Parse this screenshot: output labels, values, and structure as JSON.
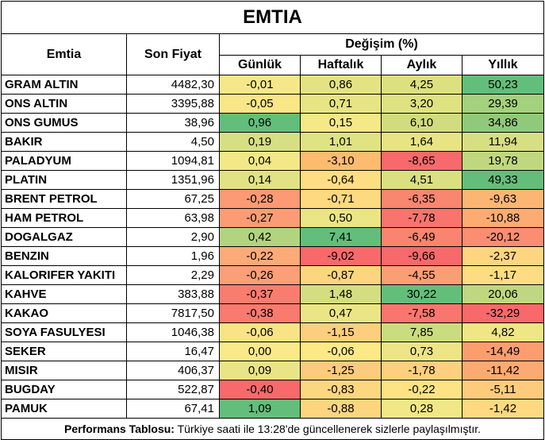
{
  "title": "EMTIA",
  "headers": {
    "emtia": "Emtia",
    "son_fiyat": "Son Fiyat",
    "degisim": "Değişim (%)",
    "gunluk": "Günlük",
    "haftalik": "Haftalık",
    "aylik": "Aylık",
    "yillik": "Yıllık"
  },
  "rows": [
    {
      "name": "GRAM ALTIN",
      "price": "4482,30",
      "d": "-0,01",
      "w": "0,86",
      "m": "4,25",
      "y": "50,23",
      "dc": "#f6e88a",
      "wc": "#e3e383",
      "mc": "#dce07f",
      "yc": "#63be7b"
    },
    {
      "name": "ONS ALTIN",
      "price": "3395,88",
      "d": "-0,05",
      "w": "0,71",
      "m": "3,20",
      "y": "29,39",
      "dc": "#f9e687",
      "wc": "#e6e484",
      "mc": "#dfe281",
      "yc": "#a3d17e"
    },
    {
      "name": "ONS GUMUS",
      "price": "38,96",
      "d": "0,96",
      "w": "0,15",
      "m": "6,10",
      "y": "34,86",
      "dc": "#63be7b",
      "wc": "#f5e888",
      "mc": "#d0dc7f",
      "yc": "#8fca7c"
    },
    {
      "name": "BAKIR",
      "price": "4,50",
      "d": "0,19",
      "w": "1,01",
      "m": "1,64",
      "y": "11,94",
      "dc": "#d6df81",
      "wc": "#e0e382",
      "mc": "#e8e483",
      "yc": "#d8df82"
    },
    {
      "name": "PALADYUM",
      "price": "1094,81",
      "d": "0,04",
      "w": "-3,10",
      "m": "-8,65",
      "y": "19,78",
      "dc": "#f2e888",
      "wc": "#fdbb6f",
      "mc": "#f8696b",
      "yc": "#bfd880"
    },
    {
      "name": "PLATIN",
      "price": "1351,96",
      "d": "0,14",
      "w": "-0,64",
      "m": "4,51",
      "y": "49,33",
      "dc": "#e1e283",
      "wc": "#fdde82",
      "mc": "#dadf80",
      "yc": "#64be7b"
    },
    {
      "name": "BRENT PETROL",
      "price": "67,25",
      "d": "-0,28",
      "w": "-0,71",
      "m": "-6,35",
      "y": "-9,63",
      "dc": "#fb9a74",
      "wc": "#fdd980",
      "mc": "#f9866f",
      "yc": "#fcb673"
    },
    {
      "name": "HAM PETROL",
      "price": "63,98",
      "d": "-0,27",
      "w": "0,50",
      "m": "-7,78",
      "y": "-10,88",
      "dc": "#fb9c75",
      "wc": "#ebe585",
      "mc": "#f8746d",
      "yc": "#fcac72"
    },
    {
      "name": "DOGALGAZ",
      "price": "2,90",
      "d": "0,42",
      "w": "7,41",
      "m": "-6,49",
      "y": "-20,12",
      "dc": "#b2d47e",
      "wc": "#63be7b",
      "mc": "#f9846f",
      "yc": "#fb8d70"
    },
    {
      "name": "BENZIN",
      "price": "1,96",
      "d": "-0,22",
      "w": "-9,02",
      "m": "-9,66",
      "y": "-2,37",
      "dc": "#fcaa78",
      "wc": "#f8696b",
      "mc": "#f8696b",
      "yc": "#fed680"
    },
    {
      "name": "KALORIFER YAKITI",
      "price": "2,29",
      "d": "-0,26",
      "w": "-0,87",
      "m": "-4,55",
      "y": "-1,17",
      "dc": "#fb9f76",
      "wc": "#fdd57f",
      "mc": "#fa9e73",
      "yc": "#fedc82"
    },
    {
      "name": "KAHVE",
      "price": "383,88",
      "d": "-0,37",
      "w": "1,48",
      "m": "30,22",
      "y": "20,06",
      "dc": "#f97d6f",
      "wc": "#d4dd7f",
      "mc": "#63be7b",
      "yc": "#bed780"
    },
    {
      "name": "KAKAO",
      "price": "7817,50",
      "d": "-0,38",
      "w": "0,47",
      "m": "-7,58",
      "y": "-32,29",
      "dc": "#f97a6e",
      "wc": "#ece585",
      "mc": "#f8766d",
      "yc": "#f8696b"
    },
    {
      "name": "SOYA FASULYESI",
      "price": "1046,38",
      "d": "-0,06",
      "w": "-1,15",
      "m": "7,85",
      "y": "4,82",
      "dc": "#f9e387",
      "wc": "#fdce7d",
      "mc": "#cbdb7f",
      "yc": "#f0e686"
    },
    {
      "name": "SEKER",
      "price": "16,47",
      "d": "0,00",
      "w": "-0,06",
      "m": "0,73",
      "y": "-14,49",
      "dc": "#f9e988",
      "wc": "#fde986",
      "mc": "#ede585",
      "yc": "#fc9d70"
    },
    {
      "name": "MISIR",
      "price": "406,37",
      "d": "0,09",
      "w": "-1,25",
      "m": "-1,78",
      "y": "-11,42",
      "dc": "#e9e485",
      "wc": "#fdcb7c",
      "mc": "#fed07d",
      "yc": "#fcaa72"
    },
    {
      "name": "BUGDAY",
      "price": "522,87",
      "d": "-0,40",
      "w": "-0,83",
      "m": "-0,22",
      "y": "-5,11",
      "dc": "#f8696b",
      "wc": "#fdd680",
      "mc": "#fee384",
      "yc": "#fdcb7c"
    },
    {
      "name": "PAMUK",
      "price": "67,41",
      "d": "1,09",
      "w": "-0,88",
      "m": "0,28",
      "y": "-1,42",
      "dc": "#63be7b",
      "wc": "#fdd57f",
      "mc": "#f2e787",
      "yc": "#fed981"
    }
  ],
  "footer": {
    "label": "Performans Tablosu:",
    "text": " Türkiye saati ile 13:28'de güncellenerek sizlerle paylaşılmıştır."
  }
}
